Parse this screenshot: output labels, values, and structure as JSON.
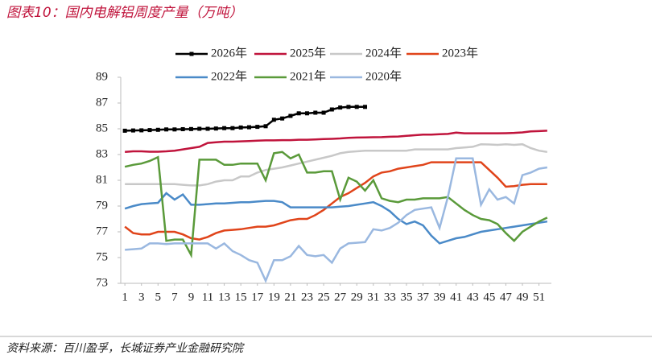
{
  "chart_data": {
    "type": "line",
    "title": "图表10：国内电解铝周度产量（万吨）",
    "source": "资料来源：百川盈孚，长城证券产业金融研究院",
    "x": [
      1,
      2,
      3,
      4,
      5,
      6,
      7,
      8,
      9,
      10,
      11,
      12,
      13,
      14,
      15,
      16,
      17,
      18,
      19,
      20,
      21,
      22,
      23,
      24,
      25,
      26,
      27,
      28,
      29,
      30,
      31,
      32,
      33,
      34,
      35,
      36,
      37,
      38,
      39,
      40,
      41,
      42,
      43,
      44,
      45,
      46,
      47,
      48,
      49,
      50,
      51,
      52
    ],
    "xlim": [
      0.5,
      52.5
    ],
    "xticks": [
      1,
      3,
      5,
      7,
      9,
      11,
      13,
      15,
      17,
      19,
      21,
      23,
      25,
      27,
      29,
      31,
      33,
      35,
      37,
      39,
      41,
      43,
      45,
      47,
      49,
      51
    ],
    "ylim": [
      73,
      89
    ],
    "yticks": [
      73,
      75,
      77,
      79,
      81,
      83,
      85,
      87,
      89
    ],
    "grid": false,
    "series": [
      {
        "name": "2026年",
        "color": "#000000",
        "marker": "square",
        "values": [
          84.85,
          84.87,
          84.88,
          84.9,
          84.92,
          84.95,
          84.95,
          84.97,
          84.98,
          85.0,
          85.0,
          85.02,
          85.05,
          85.05,
          85.1,
          85.12,
          85.15,
          85.2,
          85.7,
          85.8,
          86.0,
          86.2,
          86.2,
          86.25,
          86.25,
          86.5,
          86.65,
          86.7,
          86.7,
          86.7,
          null,
          null,
          null,
          null,
          null,
          null,
          null,
          null,
          null,
          null,
          null,
          null,
          null,
          null,
          null,
          null,
          null,
          null,
          null,
          null,
          null,
          null
        ]
      },
      {
        "name": "2025年",
        "color": "#c0143c",
        "values": [
          83.2,
          83.25,
          83.25,
          83.22,
          83.22,
          83.25,
          83.3,
          83.4,
          83.5,
          83.6,
          83.9,
          83.95,
          84.0,
          84.0,
          84.02,
          84.05,
          84.08,
          84.1,
          84.1,
          84.12,
          84.12,
          84.15,
          84.15,
          84.17,
          84.2,
          84.22,
          84.25,
          84.3,
          84.32,
          84.33,
          84.34,
          84.35,
          84.38,
          84.4,
          84.45,
          84.5,
          84.55,
          84.55,
          84.58,
          84.6,
          84.7,
          84.65,
          84.65,
          84.65,
          84.65,
          84.65,
          84.66,
          84.68,
          84.72,
          84.8,
          84.82,
          84.85
        ]
      },
      {
        "name": "2024年",
        "color": "#c8c8c8",
        "values": [
          80.7,
          80.7,
          80.7,
          80.7,
          80.7,
          80.7,
          80.7,
          80.65,
          80.6,
          80.6,
          80.7,
          80.9,
          81.0,
          81.0,
          81.3,
          81.3,
          81.6,
          81.8,
          81.9,
          82.0,
          82.15,
          82.3,
          82.45,
          82.6,
          82.75,
          82.9,
          83.1,
          83.2,
          83.25,
          83.3,
          83.3,
          83.3,
          83.3,
          83.3,
          83.3,
          83.4,
          83.4,
          83.4,
          83.4,
          83.4,
          83.5,
          83.55,
          83.6,
          83.8,
          83.78,
          83.75,
          83.8,
          83.75,
          83.8,
          83.5,
          83.3,
          83.2
        ]
      },
      {
        "name": "2023年",
        "color": "#e0441a",
        "values": [
          77.4,
          76.9,
          76.8,
          76.8,
          77.0,
          77.0,
          77.0,
          76.8,
          76.5,
          76.4,
          76.6,
          76.9,
          77.1,
          77.15,
          77.2,
          77.3,
          77.4,
          77.4,
          77.5,
          77.7,
          77.9,
          78.0,
          78.0,
          78.3,
          78.7,
          79.2,
          79.7,
          80.0,
          80.4,
          80.8,
          81.3,
          81.6,
          81.7,
          81.9,
          82.0,
          82.1,
          82.2,
          82.4,
          82.4,
          82.4,
          82.4,
          82.4,
          82.4,
          82.4,
          81.8,
          81.2,
          80.5,
          80.55,
          80.65,
          80.7,
          80.7,
          80.7
        ]
      },
      {
        "name": "2022年",
        "color": "#4a8ac8",
        "values": [
          78.8,
          79.0,
          79.15,
          79.2,
          79.25,
          80.0,
          79.5,
          79.9,
          79.1,
          79.1,
          79.15,
          79.2,
          79.2,
          79.25,
          79.3,
          79.3,
          79.35,
          79.4,
          79.4,
          79.3,
          78.9,
          78.9,
          78.9,
          78.9,
          78.9,
          78.9,
          78.95,
          79.0,
          79.1,
          79.2,
          79.3,
          79.0,
          78.6,
          78.0,
          77.6,
          77.8,
          77.5,
          76.7,
          76.1,
          76.3,
          76.5,
          76.6,
          76.8,
          77.0,
          77.1,
          77.2,
          77.3,
          77.4,
          77.5,
          77.6,
          77.7,
          77.8
        ]
      },
      {
        "name": "2021年",
        "color": "#5a9a3a",
        "values": [
          82.05,
          82.2,
          82.3,
          82.5,
          82.8,
          76.3,
          76.4,
          76.4,
          75.2,
          82.6,
          82.6,
          82.6,
          82.2,
          82.2,
          82.3,
          82.3,
          82.3,
          81.0,
          83.1,
          83.2,
          82.7,
          83.0,
          81.6,
          81.6,
          81.7,
          81.7,
          79.5,
          81.2,
          80.9,
          80.2,
          81.0,
          79.6,
          79.4,
          79.3,
          79.5,
          79.5,
          79.6,
          79.6,
          79.6,
          79.7,
          79.2,
          78.7,
          78.3,
          78.0,
          77.9,
          77.6,
          76.9,
          76.3,
          77.0,
          77.4,
          77.8,
          78.1
        ]
      },
      {
        "name": "2020年",
        "color": "#9ab8e0",
        "values": [
          75.6,
          75.65,
          75.7,
          76.1,
          76.1,
          76.05,
          76.1,
          76.1,
          76.1,
          76.1,
          76.1,
          75.7,
          76.1,
          75.5,
          75.2,
          74.8,
          74.6,
          73.2,
          74.8,
          74.8,
          75.1,
          75.9,
          75.2,
          75.1,
          75.2,
          74.6,
          75.7,
          76.1,
          76.15,
          76.2,
          77.2,
          77.1,
          77.3,
          77.7,
          78.3,
          78.7,
          78.8,
          78.9,
          77.3,
          79.7,
          82.7,
          82.7,
          82.7,
          79.1,
          80.3,
          79.5,
          79.7,
          79.2,
          81.4,
          81.6,
          81.9,
          82.0
        ]
      }
    ]
  }
}
